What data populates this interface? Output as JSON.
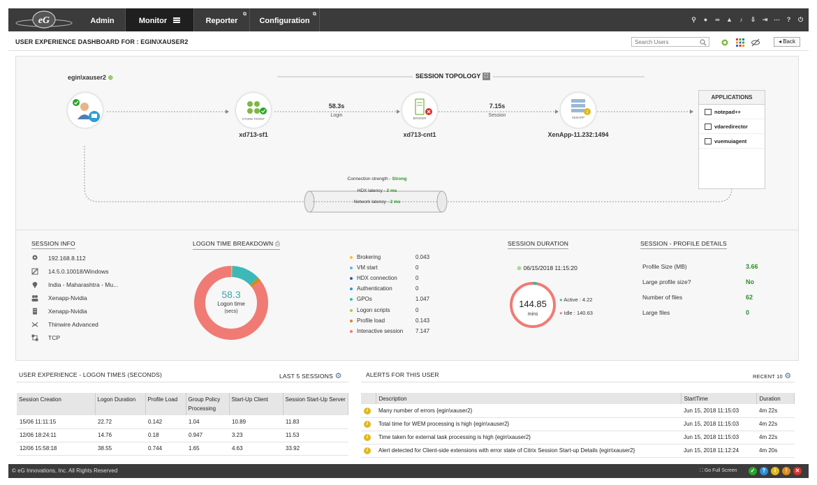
{
  "nav": {
    "admin": "Admin",
    "monitor": "Monitor",
    "reporter": "Reporter",
    "configuration": "Configuration"
  },
  "page": {
    "title": "USER EXPERIENCE DASHBOARD FOR : EGIN\\XAUSER2",
    "search_placeholder": "Search Users",
    "back_label": "Back"
  },
  "topology": {
    "user": "egin\\xauser2",
    "title": "SESSION TOPOLOGY",
    "storefront": {
      "name": "xd713-sf1",
      "icon_text": "STORE FRONT"
    },
    "broker": {
      "name": "xd713-cnt1",
      "icon_text": "BROKER"
    },
    "xenapp": {
      "name": "XenApp-11.232:1494",
      "icon_text": "XENAPP"
    },
    "login_time": "58.3s",
    "login_label": "Login",
    "session_time": "7.15s",
    "session_label": "Session",
    "connection_strength_label": "Connection strength - ",
    "connection_strength": "Strong",
    "hdx_latency_label": "HDX latency - ",
    "hdx_latency": "2 ms",
    "network_latency_label": "Network latency - ",
    "network_latency": "2 ms",
    "applications_title": "APPLICATIONS",
    "applications": [
      "notepad++",
      "vdaredirector",
      "vuemuiagent"
    ]
  },
  "session_info": {
    "title": "SESSION INFO",
    "items": [
      "192.168.8.112",
      "14.5.0.10018/Windows",
      "India - Maharashtra - Mu...",
      "Xenapp-Nvidia",
      "Xenapp-Nvidia",
      "Thinwire Advanced",
      "TCP"
    ]
  },
  "logon_breakdown": {
    "title": "LOGON TIME BREAKDOWN",
    "total": "58.3",
    "center_label_1": "Logon time",
    "center_label_2": "(secs)",
    "items": [
      {
        "label": "Brokering",
        "value": "0.043",
        "color": "#f2c12e"
      },
      {
        "label": "VM start",
        "value": "0",
        "color": "#4cc3c4"
      },
      {
        "label": "HDX connection",
        "value": "0",
        "color": "#2b5fa8"
      },
      {
        "label": "Authentication",
        "value": "0",
        "color": "#2c96d4"
      },
      {
        "label": "GPOs",
        "value": "1.047",
        "color": "#3cb8b8"
      },
      {
        "label": "Logon scripts",
        "value": "0",
        "color": "#9fd13a"
      },
      {
        "label": "Profile load",
        "value": "0.143",
        "color": "#d48a1c"
      },
      {
        "label": "Interactive session",
        "value": "7.147",
        "color": "#f07b74"
      }
    ]
  },
  "chart_data": {
    "type": "pie",
    "categories": [
      "Brokering",
      "VM start",
      "HDX connection",
      "Authentication",
      "GPOs",
      "Logon scripts",
      "Profile load",
      "Interactive session"
    ],
    "values": [
      0.043,
      0,
      0,
      0,
      1.047,
      0,
      0.143,
      7.147
    ],
    "title": "LOGON TIME BREAKDOWN"
  },
  "session_duration": {
    "title": "SESSION DURATION",
    "start": "06/15/2018 11:15:20",
    "total": "144.85",
    "unit": "mins",
    "active_label": "Active : 4.22",
    "idle_label": "Idle : 140.63",
    "active_fraction": 0.029
  },
  "profile": {
    "title": "SESSION - PROFILE DETAILS",
    "rows": [
      {
        "label": "Profile Size (MB)",
        "value": "3.66"
      },
      {
        "label": "Large profile size?",
        "value": "No"
      },
      {
        "label": "Number of files",
        "value": "62"
      },
      {
        "label": "Large files",
        "value": "0"
      }
    ]
  },
  "logon_times": {
    "title": "USER EXPERIENCE - LOGON TIMES (SECONDS)",
    "filter": "LAST 5 SESSIONS",
    "columns": [
      "Session Creation",
      "Logon Duration",
      "Profile Load",
      "Group Policy Processing",
      "Start-Up Client",
      "Session Start-Up Server"
    ],
    "rows": [
      [
        "15/06 11:11:15",
        "22.72",
        "0.142",
        "1.04",
        "10.89",
        "11.83"
      ],
      [
        "12/06 18:24:11",
        "14.76",
        "0.18",
        "0.947",
        "3.23",
        "11.53"
      ],
      [
        "12/06 15:58:18",
        "38.55",
        "0.744",
        "1.65",
        "4.63",
        "33.92"
      ]
    ]
  },
  "alerts": {
    "title": "ALERTS FOR THIS USER",
    "filter": "RECENT 10",
    "columns": [
      "Description",
      "StartTime",
      "Duration"
    ],
    "rows": [
      [
        "Many number of errors {egin\\xauser2}",
        "Jun 15, 2018 11:15:03",
        "4m 22s"
      ],
      [
        "Total time for WEM processing is high {egin\\xauser2}",
        "Jun 15, 2018 11:15:03",
        "4m 22s"
      ],
      [
        "Time taken for external task processing is high {egin\\xauser2}",
        "Jun 15, 2018 11:15:03",
        "4m 22s"
      ],
      [
        "Alert detected for Client-side extensions with error state of Citrix Session Start-up Details {egin\\xauser2}",
        "Jun 15, 2018 11:12:24",
        "4m 20s"
      ]
    ]
  },
  "footer": {
    "copyright": "© eG Innovations, Inc. All Rights Reserved",
    "fullscreen": "Go Full Screen",
    "status_colors": [
      "#2aa52a",
      "#2a8fd6",
      "#e0b820",
      "#e08a1a",
      "#d93030"
    ]
  }
}
